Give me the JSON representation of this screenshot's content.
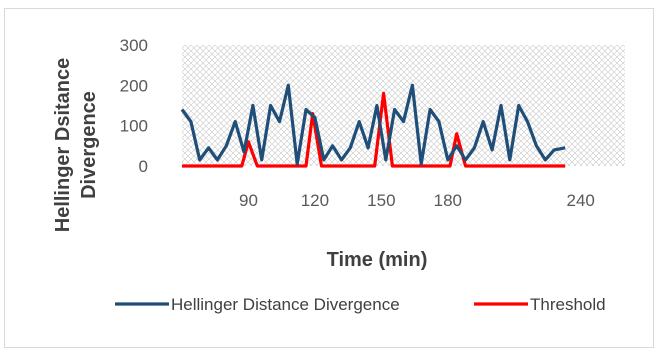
{
  "chart_data": {
    "type": "line",
    "title": "",
    "xlabel": "Time (min)",
    "ylabel_lines": [
      "Hellinger Dsitance",
      "Divergence"
    ],
    "ylim": [
      0,
      300
    ],
    "y_ticks": [
      "0",
      "100",
      "200",
      "300"
    ],
    "x_ticks": [
      {
        "label": "90",
        "t": 90
      },
      {
        "label": "120",
        "t": 120
      },
      {
        "label": "150",
        "t": 150
      },
      {
        "label": "180",
        "t": 180
      },
      {
        "label": "240",
        "t": 240
      }
    ],
    "x_axis_range": [
      60,
      260
    ],
    "grid": true,
    "legend_position": "bottom",
    "series": [
      {
        "name": "Hellinger Distance Divergence",
        "color": "#1f4e79",
        "points": [
          [
            60,
            140
          ],
          [
            64,
            110
          ],
          [
            68,
            15
          ],
          [
            72,
            45
          ],
          [
            76,
            15
          ],
          [
            80,
            50
          ],
          [
            84,
            110
          ],
          [
            88,
            35
          ],
          [
            92,
            150
          ],
          [
            96,
            15
          ],
          [
            100,
            150
          ],
          [
            104,
            110
          ],
          [
            108,
            200
          ],
          [
            112,
            5
          ],
          [
            116,
            140
          ],
          [
            120,
            120
          ],
          [
            124,
            15
          ],
          [
            128,
            50
          ],
          [
            132,
            15
          ],
          [
            136,
            45
          ],
          [
            140,
            110
          ],
          [
            144,
            45
          ],
          [
            148,
            150
          ],
          [
            152,
            15
          ],
          [
            156,
            140
          ],
          [
            160,
            110
          ],
          [
            164,
            200
          ],
          [
            168,
            5
          ],
          [
            172,
            140
          ],
          [
            176,
            110
          ],
          [
            180,
            15
          ],
          [
            184,
            50
          ],
          [
            188,
            15
          ],
          [
            192,
            45
          ],
          [
            196,
            110
          ],
          [
            200,
            40
          ],
          [
            204,
            150
          ],
          [
            208,
            15
          ],
          [
            212,
            150
          ],
          [
            216,
            110
          ],
          [
            220,
            50
          ],
          [
            224,
            15
          ],
          [
            228,
            40
          ],
          [
            233,
            45
          ]
        ]
      },
      {
        "name": "Threshold",
        "color": "#ff0000",
        "points": [
          [
            60,
            0
          ],
          [
            87,
            0
          ],
          [
            90,
            60
          ],
          [
            94,
            0
          ],
          [
            116,
            0
          ],
          [
            119,
            130
          ],
          [
            123,
            0
          ],
          [
            147,
            0
          ],
          [
            151,
            180
          ],
          [
            155,
            0
          ],
          [
            181,
            0
          ],
          [
            184,
            80
          ],
          [
            188,
            0
          ],
          [
            233,
            0
          ]
        ]
      }
    ]
  }
}
